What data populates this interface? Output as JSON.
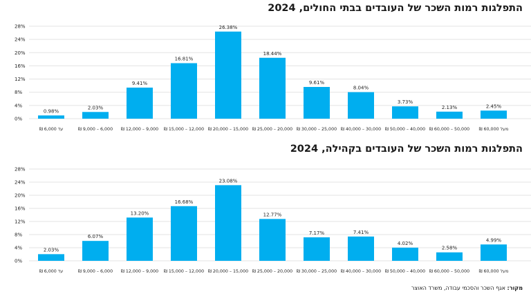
{
  "colors": {
    "bar": "#00aeef",
    "grid": "#e3e3e3",
    "text": "#1f1f1f"
  },
  "source": {
    "label": "מקור:",
    "text": "אגף השכר והסכמי עבודה, משרד האוצר"
  },
  "chart_data": [
    {
      "type": "bar",
      "title": "התפלגות רמות השכר של העובדים בבתי החולים, 2024",
      "categories": [
        "עד 6,000 ₪",
        "6,000 – 9,000 ₪",
        "9,000 – 12,000 ₪",
        "12,000 – 15,000 ₪",
        "15,000 – 20,000 ₪",
        "20,000 – 25,000 ₪",
        "25,000 – 30,000 ₪",
        "30,000 – 40,000 ₪",
        "40,000 – 50,000 ₪",
        "50,000 – 60,000 ₪",
        "מעל 60,000 ₪"
      ],
      "values": [
        0.98,
        2.03,
        9.41,
        16.81,
        26.38,
        18.44,
        9.61,
        8.04,
        3.73,
        2.13,
        2.45
      ],
      "value_labels": [
        "0.98%",
        "2.03%",
        "9.41%",
        "16.81%",
        "26.38%",
        "18.44%",
        "9.61%",
        "8.04%",
        "3.73%",
        "2.13%",
        "2.45%"
      ],
      "yticks": [
        "0%",
        "4%",
        "8%",
        "12%",
        "16%",
        "20%",
        "24%",
        "28%"
      ],
      "ylim": [
        0,
        28
      ],
      "grid": true
    },
    {
      "type": "bar",
      "title": "התפלגות רמות השכר של העובדים בקהילה, 2024",
      "categories": [
        "עד 6,000 ₪",
        "6,000 – 9,000 ₪",
        "9,000 – 12,000 ₪",
        "12,000 – 15,000 ₪",
        "15,000 – 20,000 ₪",
        "20,000 – 25,000 ₪",
        "25,000 – 30,000 ₪",
        "30,000 – 40,000 ₪",
        "40,000 – 50,000 ₪",
        "50,000 – 60,000 ₪",
        "מעל 60,000 ₪"
      ],
      "values": [
        2.03,
        6.07,
        13.2,
        16.68,
        23.08,
        12.77,
        7.17,
        7.41,
        4.02,
        2.58,
        4.99
      ],
      "value_labels": [
        "2.03%",
        "6.07%",
        "13.20%",
        "16.68%",
        "23.08%",
        "12.77%",
        "7.17%",
        "7.41%",
        "4.02%",
        "2.58%",
        "4.99%"
      ],
      "yticks": [
        "0%",
        "4%",
        "8%",
        "12%",
        "16%",
        "20%",
        "24%",
        "28%"
      ],
      "ylim": [
        0,
        28
      ],
      "grid": true
    }
  ]
}
